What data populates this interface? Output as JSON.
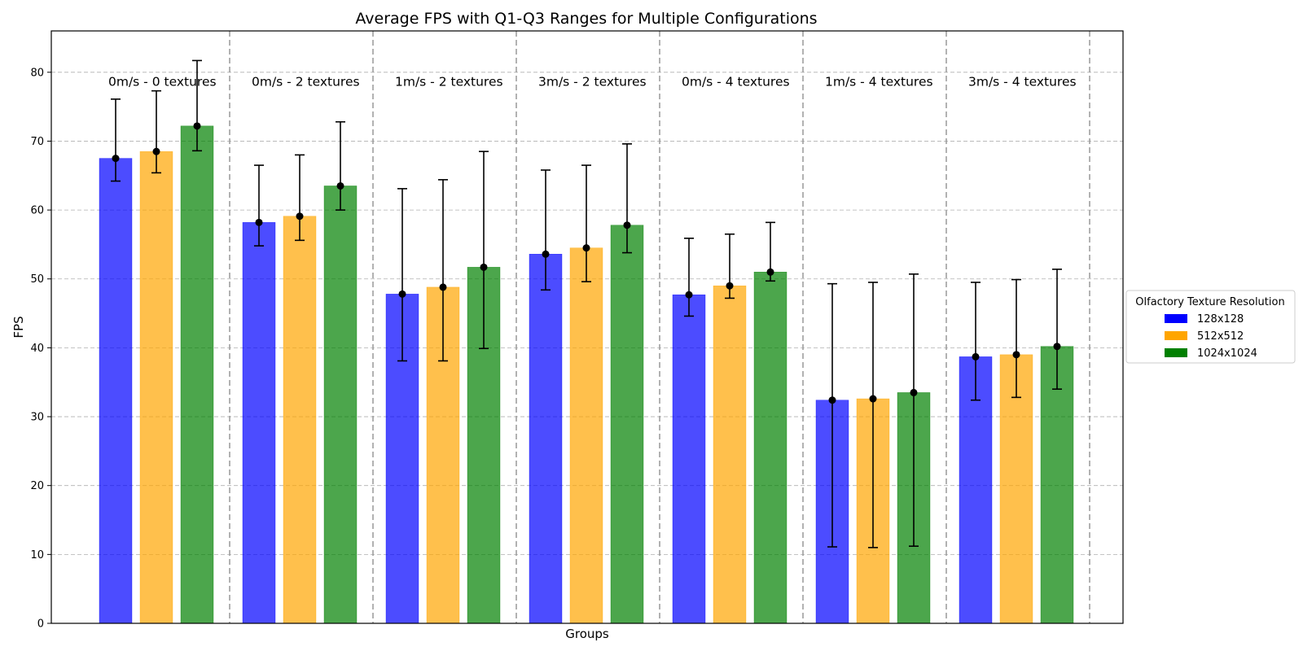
{
  "chart_data": {
    "type": "bar",
    "title": "Average FPS with Q1-Q3 Ranges for Multiple Configurations",
    "xlabel": "Groups",
    "ylabel": "FPS",
    "ylim": [
      0,
      86
    ],
    "yticks": [
      0,
      10,
      20,
      30,
      40,
      50,
      60,
      70,
      80
    ],
    "grid": true,
    "legend_title": "Olfactory Texture Resolution",
    "legend_position": "right",
    "categories": [
      "0m/s - 0 textures",
      "0m/s - 2 textures",
      "1m/s - 2 textures",
      "3m/s - 2 textures",
      "0m/s - 4 textures",
      "1m/s - 4 textures",
      "3m/s - 4 textures"
    ],
    "series": [
      {
        "name": "128x128",
        "color": "#0000ff",
        "values": [
          67.5,
          58.2,
          47.8,
          53.6,
          47.7,
          32.4,
          38.7
        ],
        "q1": [
          64.2,
          54.8,
          38.1,
          48.4,
          44.6,
          11.1,
          32.4
        ],
        "q3": [
          76.1,
          66.5,
          63.1,
          65.8,
          55.9,
          49.3,
          49.5
        ]
      },
      {
        "name": "512x512",
        "color": "#ffa500",
        "values": [
          68.5,
          59.1,
          48.8,
          54.5,
          49.0,
          32.6,
          39.0
        ],
        "q1": [
          65.4,
          55.6,
          38.1,
          49.6,
          47.2,
          11.0,
          32.8
        ],
        "q3": [
          77.3,
          68.0,
          64.4,
          66.5,
          56.5,
          49.5,
          49.9
        ]
      },
      {
        "name": "1024x1024",
        "color": "#008000",
        "values": [
          72.2,
          63.5,
          51.7,
          57.8,
          51.0,
          33.5,
          40.2
        ],
        "q1": [
          68.6,
          60.0,
          39.9,
          53.8,
          49.7,
          11.2,
          34.0
        ],
        "q3": [
          81.7,
          72.8,
          68.5,
          69.6,
          58.2,
          50.7,
          51.4
        ]
      }
    ]
  }
}
